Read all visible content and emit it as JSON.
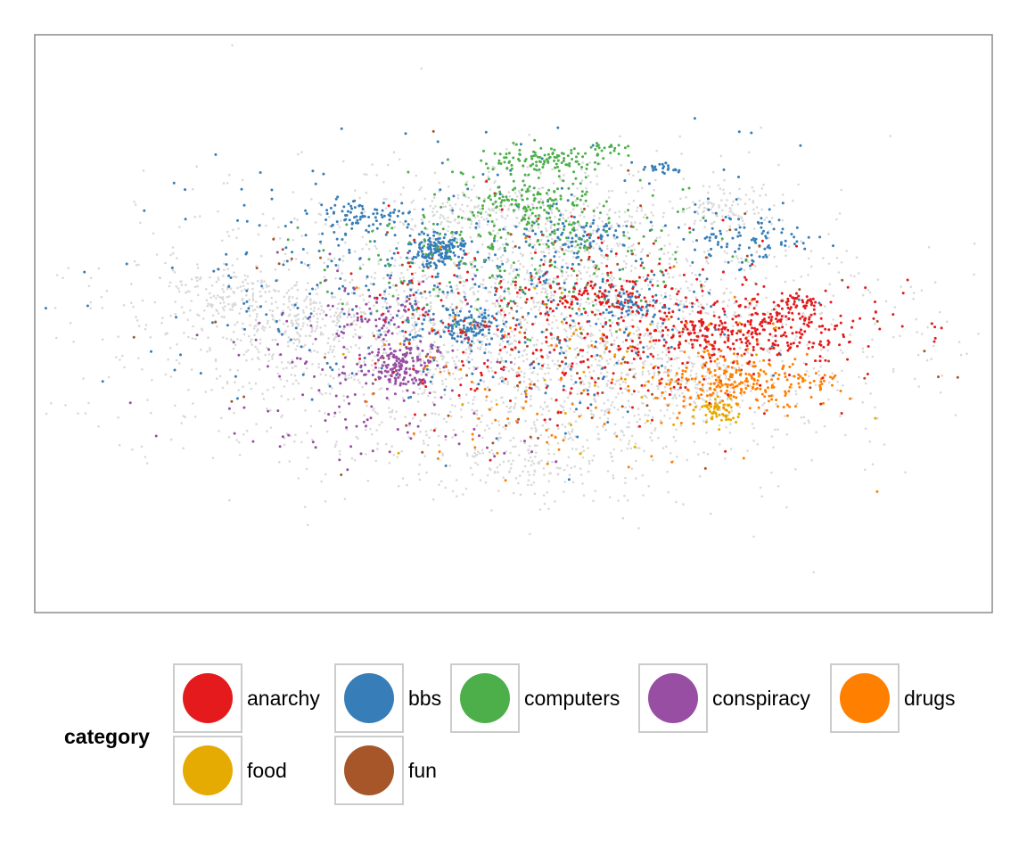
{
  "chart_data": {
    "type": "scatter",
    "title": "",
    "xlabel": "",
    "ylabel": "",
    "grid": false,
    "axes_visible": false,
    "xlim": [
      0,
      100
    ],
    "ylim": [
      0,
      100
    ],
    "background_color": "#d9d9d9",
    "background_note_free": true,
    "legend": {
      "title": "category",
      "placement": "bottom",
      "entries": [
        {
          "name": "anarchy",
          "color": "#e41a1c"
        },
        {
          "name": "bbs",
          "color": "#377eb8"
        },
        {
          "name": "computers",
          "color": "#4daf4a"
        },
        {
          "name": "conspiracy",
          "color": "#984ea3"
        },
        {
          "name": "drugs",
          "color": "#ff7f00"
        },
        {
          "name": "food",
          "color": "#e6ab02"
        },
        {
          "name": "fun",
          "color": "#a65628"
        }
      ]
    },
    "clusters": [
      {
        "series": "background",
        "cx": 50,
        "cy": 52,
        "sx": 19,
        "sy": 12,
        "n": 2600,
        "r": 1.3
      },
      {
        "series": "background",
        "cx": 55,
        "cy": 33,
        "sx": 7,
        "sy": 5,
        "n": 250,
        "r": 1.3
      },
      {
        "series": "background",
        "cx": 28,
        "cy": 49,
        "sx": 4,
        "sy": 2,
        "n": 160,
        "r": 1.3
      },
      {
        "series": "background",
        "cx": 20,
        "cy": 44,
        "sx": 3,
        "sy": 2,
        "n": 90,
        "r": 1.3
      },
      {
        "series": "background",
        "cx": 68,
        "cy": 60,
        "sx": 4,
        "sy": 3,
        "n": 150,
        "r": 1.3
      },
      {
        "series": "background",
        "cx": 45,
        "cy": 30,
        "sx": 3,
        "sy": 2,
        "n": 100,
        "r": 1.3
      },
      {
        "series": "background",
        "cx": 72,
        "cy": 30,
        "sx": 3,
        "sy": 2,
        "n": 90,
        "r": 1.3
      },
      {
        "series": "background",
        "cx": 53,
        "cy": 75,
        "sx": 5,
        "sy": 3,
        "n": 130,
        "r": 1.3
      },
      {
        "series": "bbs",
        "cx": 42.3,
        "cy": 37,
        "sx": 1.3,
        "sy": 1.6,
        "n": 170,
        "r": 1.5
      },
      {
        "series": "bbs",
        "cx": 45.5,
        "cy": 50.5,
        "sx": 1.8,
        "sy": 1.5,
        "n": 100,
        "r": 1.5
      },
      {
        "series": "bbs",
        "cx": 34,
        "cy": 31,
        "sx": 2.5,
        "sy": 1.3,
        "n": 70,
        "r": 1.5
      },
      {
        "series": "bbs",
        "cx": 62.5,
        "cy": 46.5,
        "sx": 2.5,
        "sy": 1.5,
        "n": 70,
        "r": 1.5
      },
      {
        "series": "bbs",
        "cx": 57.5,
        "cy": 34.5,
        "sx": 2,
        "sy": 1.2,
        "n": 60,
        "r": 1.5
      },
      {
        "series": "bbs",
        "cx": 75,
        "cy": 35,
        "sx": 3.5,
        "sy": 3,
        "n": 90,
        "r": 1.5
      },
      {
        "series": "bbs",
        "cx": 65.5,
        "cy": 23,
        "sx": 1.2,
        "sy": 0.5,
        "n": 25,
        "r": 1.5
      },
      {
        "series": "bbs",
        "cx": 45,
        "cy": 44,
        "sx": 15,
        "sy": 10,
        "n": 500,
        "r": 1.5
      },
      {
        "series": "computers",
        "cx": 52.5,
        "cy": 21.5,
        "sx": 3,
        "sy": 1.2,
        "n": 110,
        "r": 1.5
      },
      {
        "series": "computers",
        "cx": 52,
        "cy": 29,
        "sx": 3,
        "sy": 2.5,
        "n": 120,
        "r": 1.5
      },
      {
        "series": "computers",
        "cx": 60,
        "cy": 19.5,
        "sx": 1.2,
        "sy": 0.8,
        "n": 20,
        "r": 1.5
      },
      {
        "series": "computers",
        "cx": 52,
        "cy": 37,
        "sx": 9,
        "sy": 7,
        "n": 250,
        "r": 1.5
      },
      {
        "series": "anarchy",
        "cx": 75,
        "cy": 51,
        "sx": 6,
        "sy": 3,
        "n": 380,
        "r": 1.5
      },
      {
        "series": "anarchy",
        "cx": 59,
        "cy": 44.5,
        "sx": 2.5,
        "sy": 1.3,
        "n": 60,
        "r": 1.5
      },
      {
        "series": "anarchy",
        "cx": 80,
        "cy": 46,
        "sx": 1.2,
        "sy": 0.6,
        "n": 25,
        "r": 1.5
      },
      {
        "series": "anarchy",
        "cx": 56,
        "cy": 50,
        "sx": 10,
        "sy": 8,
        "n": 320,
        "r": 1.5
      },
      {
        "series": "conspiracy",
        "cx": 38.2,
        "cy": 57.5,
        "sx": 1.8,
        "sy": 2,
        "n": 150,
        "r": 1.5
      },
      {
        "series": "conspiracy",
        "cx": 36,
        "cy": 48,
        "sx": 3,
        "sy": 3,
        "n": 60,
        "r": 1.5
      },
      {
        "series": "conspiracy",
        "cx": 35,
        "cy": 60,
        "sx": 9,
        "sy": 8,
        "n": 150,
        "r": 1.5
      },
      {
        "series": "drugs",
        "cx": 73,
        "cy": 60,
        "sx": 4,
        "sy": 2.5,
        "n": 220,
        "r": 1.5
      },
      {
        "series": "drugs",
        "cx": 81.5,
        "cy": 60,
        "sx": 1.5,
        "sy": 1,
        "n": 25,
        "r": 1.5
      },
      {
        "series": "drugs",
        "cx": 60,
        "cy": 60,
        "sx": 12,
        "sy": 9,
        "n": 120,
        "r": 1.5
      },
      {
        "series": "food",
        "cx": 71.5,
        "cy": 65,
        "sx": 1.3,
        "sy": 1.2,
        "n": 60,
        "r": 1.5
      },
      {
        "series": "food",
        "cx": 62,
        "cy": 58,
        "sx": 10,
        "sy": 8,
        "n": 40,
        "r": 1.5
      },
      {
        "series": "fun",
        "cx": 52,
        "cy": 52,
        "sx": 15,
        "sy": 10,
        "n": 150,
        "r": 1.5
      }
    ]
  }
}
